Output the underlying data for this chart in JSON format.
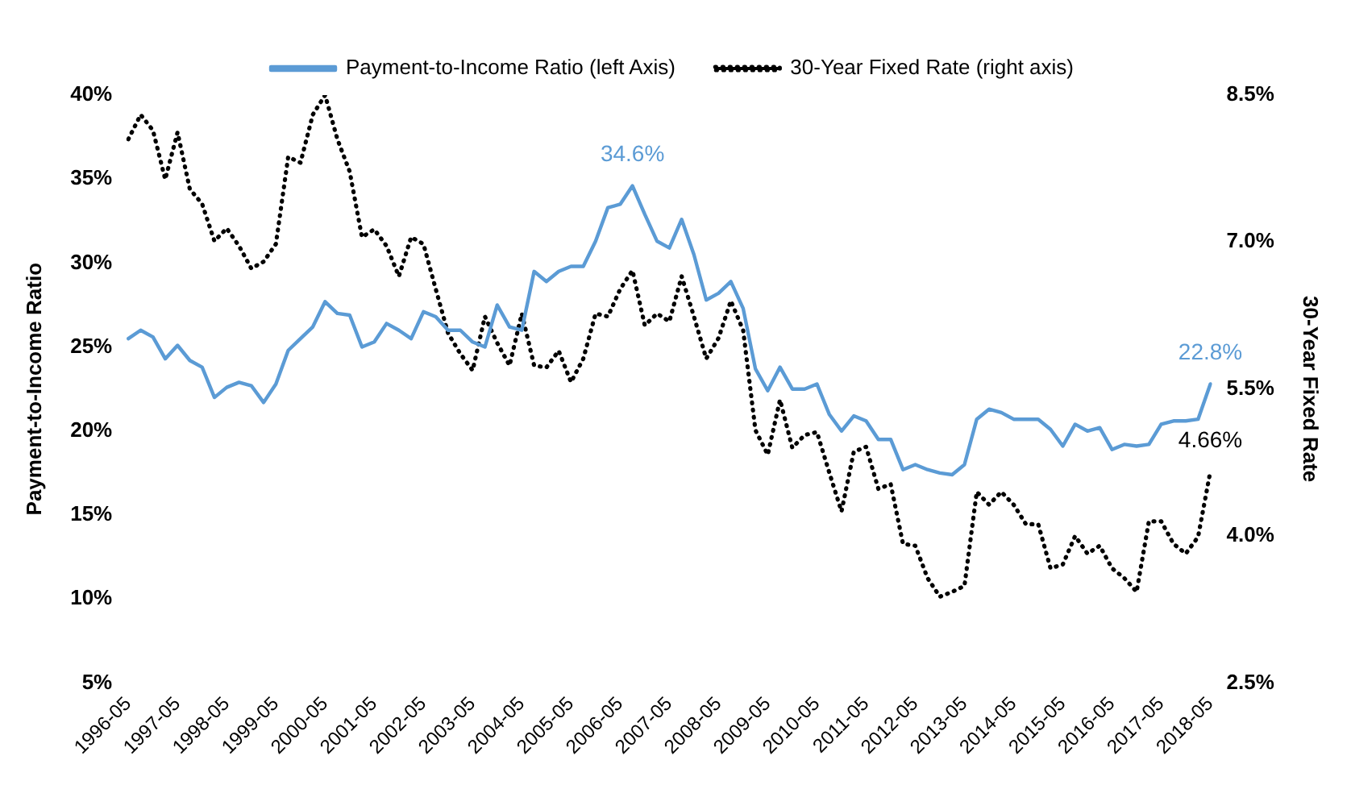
{
  "chart_data": {
    "type": "line",
    "ylabel": "Payment-to-Income Ratio",
    "y2label": "30-Year Fixed Rate",
    "categories": [
      "1996-05",
      null,
      null,
      null,
      "1997-05",
      null,
      null,
      null,
      "1998-05",
      null,
      null,
      null,
      "1999-05",
      null,
      null,
      null,
      "2000-05",
      null,
      null,
      null,
      "2001-05",
      null,
      null,
      null,
      "2002-05",
      null,
      null,
      null,
      "2003-05",
      null,
      null,
      null,
      "2004-05",
      null,
      null,
      null,
      "2005-05",
      null,
      null,
      null,
      "2006-05",
      null,
      null,
      null,
      "2007-05",
      null,
      null,
      null,
      "2008-05",
      null,
      null,
      null,
      "2009-05",
      null,
      null,
      null,
      "2010-05",
      null,
      null,
      null,
      "2011-05",
      null,
      null,
      null,
      "2012-05",
      null,
      null,
      null,
      "2013-05",
      null,
      null,
      null,
      "2014-05",
      null,
      null,
      null,
      "2015-05",
      null,
      null,
      null,
      "2016-05",
      null,
      null,
      null,
      "2017-05",
      null,
      null,
      null,
      "2018-05"
    ],
    "series": [
      {
        "name": "Payment-to-Income Ratio (left Axis)",
        "color": "#5b9bd5",
        "line_style": "solid",
        "values": [
          25.5,
          26.0,
          25.6,
          24.3,
          25.1,
          24.2,
          23.8,
          22.0,
          22.6,
          22.9,
          22.7,
          21.7,
          22.8,
          24.8,
          25.5,
          26.2,
          27.7,
          27.0,
          26.9,
          25.0,
          25.3,
          26.4,
          26.0,
          25.5,
          27.1,
          26.8,
          26.0,
          26.0,
          25.3,
          25.0,
          27.5,
          26.2,
          26.0,
          29.5,
          28.9,
          29.5,
          29.8,
          29.8,
          31.3,
          33.3,
          33.5,
          34.6,
          32.9,
          31.3,
          30.9,
          32.6,
          30.5,
          27.8,
          28.2,
          28.9,
          27.3,
          23.7,
          22.4,
          23.8,
          22.5,
          22.5,
          22.8,
          21.0,
          20.0,
          20.9,
          20.6,
          19.5,
          19.5,
          17.7,
          18.0,
          17.7,
          17.5,
          17.4,
          18.0,
          20.7,
          21.3,
          21.1,
          20.7,
          20.7,
          20.7,
          20.1,
          19.1,
          20.4,
          20.0,
          20.2,
          18.9,
          19.2,
          19.1,
          19.2,
          20.4,
          20.6,
          20.6,
          20.7,
          22.8
        ],
        "value_labels": [
          null,
          null,
          null,
          null,
          null,
          null,
          null,
          null,
          null,
          null,
          null,
          null,
          null,
          null,
          null,
          null,
          null,
          null,
          null,
          null,
          null,
          null,
          null,
          null,
          null,
          null,
          null,
          null,
          null,
          null,
          null,
          null,
          null,
          null,
          null,
          null,
          null,
          null,
          null,
          null,
          null,
          "34.6%",
          null,
          null,
          null,
          null,
          null,
          null,
          null,
          null,
          null,
          null,
          null,
          null,
          null,
          null,
          null,
          null,
          null,
          null,
          null,
          null,
          null,
          null,
          null,
          null,
          null,
          null,
          null,
          null,
          null,
          null,
          null,
          null,
          null,
          null,
          null,
          null,
          null,
          null,
          null,
          null,
          null,
          null,
          null,
          null,
          null,
          null,
          "22.8%"
        ]
      },
      {
        "name": "30-Year Fixed Rate (right axis)",
        "color": "#000000",
        "axis": "y2",
        "line_style": "dotted",
        "values": [
          8.05,
          8.3,
          8.14,
          7.64,
          8.12,
          7.54,
          7.39,
          7.01,
          7.14,
          6.96,
          6.73,
          6.8,
          6.98,
          7.87,
          7.81,
          8.3,
          8.5,
          8.05,
          7.72,
          7.05,
          7.13,
          6.96,
          6.65,
          7.05,
          6.98,
          6.52,
          6.07,
          5.86,
          5.69,
          6.24,
          5.97,
          5.74,
          6.27,
          5.74,
          5.72,
          5.89,
          5.57,
          5.81,
          6.27,
          6.24,
          6.52,
          6.71,
          6.15,
          6.27,
          6.19,
          6.65,
          6.24,
          5.81,
          6.02,
          6.4,
          6.1,
          5.08,
          4.83,
          5.39,
          4.9,
          5.03,
          5.06,
          4.65,
          4.25,
          4.86,
          4.91,
          4.48,
          4.53,
          3.92,
          3.9,
          3.57,
          3.38,
          3.43,
          3.49,
          4.45,
          4.32,
          4.45,
          4.32,
          4.12,
          4.12,
          3.67,
          3.71,
          4.0,
          3.82,
          3.9,
          3.67,
          3.57,
          3.43,
          4.15,
          4.15,
          3.92,
          3.82,
          3.99,
          4.66
        ],
        "value_labels": [
          null,
          null,
          null,
          null,
          null,
          null,
          null,
          null,
          null,
          null,
          null,
          null,
          null,
          null,
          null,
          null,
          null,
          null,
          null,
          null,
          null,
          null,
          null,
          null,
          null,
          null,
          null,
          null,
          null,
          null,
          null,
          null,
          null,
          null,
          null,
          null,
          null,
          null,
          null,
          null,
          null,
          null,
          null,
          null,
          null,
          null,
          null,
          null,
          null,
          null,
          null,
          null,
          null,
          null,
          null,
          null,
          null,
          null,
          null,
          null,
          null,
          null,
          null,
          null,
          null,
          null,
          null,
          null,
          null,
          null,
          null,
          null,
          null,
          null,
          null,
          null,
          null,
          null,
          null,
          null,
          null,
          null,
          null,
          null,
          null,
          null,
          null,
          null,
          "4.66%"
        ]
      }
    ],
    "ylim": [
      5,
      40
    ],
    "yticks": [
      {
        "value": 5,
        "label": "5%"
      },
      {
        "value": 10,
        "label": "10%"
      },
      {
        "value": 15,
        "label": "15%"
      },
      {
        "value": 20,
        "label": "20%"
      },
      {
        "value": 25,
        "label": "25%"
      },
      {
        "value": 30,
        "label": "30%"
      },
      {
        "value": 35,
        "label": "35%"
      },
      {
        "value": 40,
        "label": "40%"
      }
    ],
    "y2lim": [
      2.5,
      8.5
    ],
    "y2ticks": [
      {
        "value": 2.5,
        "label": "2.5%"
      },
      {
        "value": 4.0,
        "label": "4.0%"
      },
      {
        "value": 5.5,
        "label": "5.5%"
      },
      {
        "value": 7.0,
        "label": "7.0%"
      },
      {
        "value": 8.5,
        "label": "8.5%"
      }
    ],
    "legend": "top",
    "marker": "none"
  }
}
